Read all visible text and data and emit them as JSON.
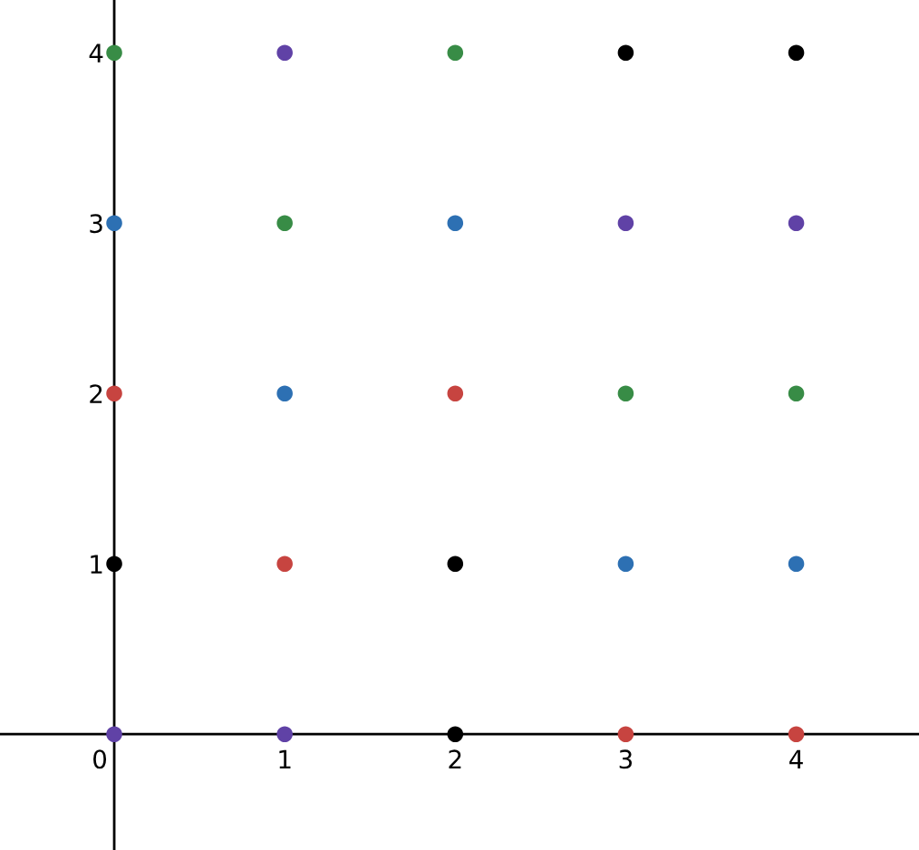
{
  "chart_data": {
    "type": "scatter",
    "x": [
      0,
      0,
      0,
      0,
      0,
      1,
      1,
      1,
      1,
      1,
      2,
      2,
      2,
      2,
      2,
      3,
      3,
      3,
      3,
      3,
      4,
      4,
      4,
      4,
      4
    ],
    "values": [
      4,
      3,
      2,
      1,
      0,
      4,
      3,
      2,
      1,
      0,
      4,
      3,
      2,
      1,
      0,
      4,
      3,
      2,
      1,
      0,
      4,
      3,
      2,
      1,
      0
    ],
    "colors": [
      "#388c46",
      "#2d70b3",
      "#c74440",
      "#000000",
      "#6042a6",
      "#6042a6",
      "#388c46",
      "#2d70b3",
      "#c74440",
      "#6042a6",
      "#388c46",
      "#2d70b3",
      "#c74440",
      "#000000",
      "#000000",
      "#000000",
      "#6042a6",
      "#388c46",
      "#2d70b3",
      "#c74440",
      "#000000",
      "#6042a6",
      "#388c46",
      "#2d70b3",
      "#c74440"
    ],
    "marker": "circle",
    "xlim": [
      -0.67,
      4.72
    ],
    "ylim": [
      -0.68,
      4.31
    ],
    "xticks": [
      0,
      1,
      2,
      3,
      4
    ],
    "yticks": [
      1,
      2,
      3,
      4
    ],
    "grid": false
  }
}
